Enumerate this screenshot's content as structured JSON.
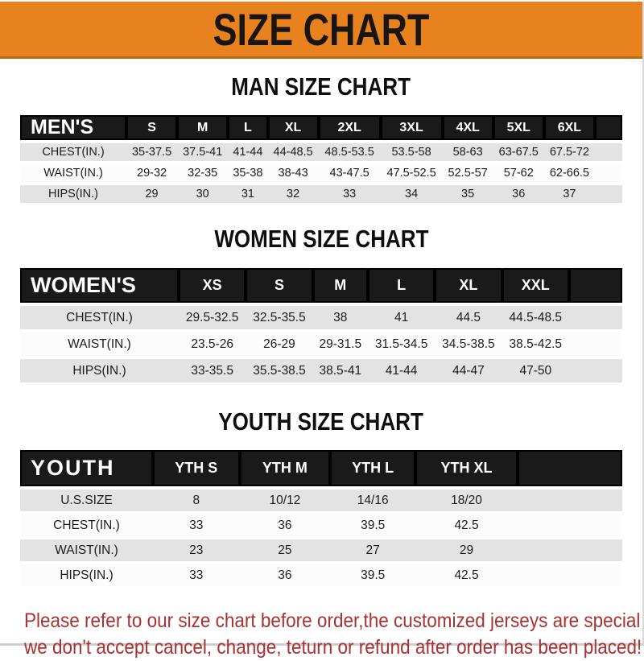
{
  "banner": {
    "title": "SIZE CHART",
    "bg_color": "#e8821e",
    "text_color": "#181512"
  },
  "sections": [
    {
      "id": "men",
      "title": "MAN SIZE CHART",
      "header_label": "MEN'S",
      "columns": [
        "S",
        "M",
        "L",
        "XL",
        "2XL",
        "3XL",
        "4XL",
        "5XL",
        "6XL"
      ],
      "rows": [
        {
          "label": "CHEST(IN.)",
          "values": [
            "35-37.5",
            "37.5-41",
            "41-44",
            "44-48.5",
            "48.5-53.5",
            "53.5-58",
            "58-63",
            "63-67.5",
            "67.5-72"
          ]
        },
        {
          "label": "WAIST(IN.)",
          "values": [
            "29-32",
            "32-35",
            "35-38",
            "38-43",
            "43-47.5",
            "47.5-52.5",
            "52.5-57",
            "57-62",
            "62-66.5"
          ]
        },
        {
          "label": "HIPS(IN.)",
          "values": [
            "29",
            "30",
            "31",
            "32",
            "33",
            "34",
            "35",
            "36",
            "37"
          ]
        }
      ]
    },
    {
      "id": "women",
      "title": "WOMEN SIZE CHART",
      "header_label": "WOMEN'S",
      "columns": [
        "XS",
        "S",
        "M",
        "L",
        "XL",
        "XXL"
      ],
      "rows": [
        {
          "label": "CHEST(IN.)",
          "values": [
            "29.5-32.5",
            "32.5-35.5",
            "38",
            "41",
            "44.5",
            "44.5-48.5"
          ]
        },
        {
          "label": "WAIST(IN.)",
          "values": [
            "23.5-26",
            "26-29",
            "29-31.5",
            "31.5-34.5",
            "34.5-38.5",
            "38.5-42.5"
          ]
        },
        {
          "label": "HIPS(IN.)",
          "values": [
            "33-35.5",
            "35.5-38.5",
            "38.5-41",
            "41-44",
            "44-47",
            "47-50"
          ]
        }
      ]
    },
    {
      "id": "youth",
      "title": "YOUTH SIZE CHART",
      "header_label": "YOUTH",
      "columns": [
        "YTH S",
        "YTH M",
        "YTH L",
        "YTH XL"
      ],
      "rows": [
        {
          "label": "U.S.SIZE",
          "values": [
            "8",
            "10/12",
            "14/16",
            "18/20"
          ]
        },
        {
          "label": "CHEST(IN.)",
          "values": [
            "33",
            "36",
            "39.5",
            "42.5"
          ]
        },
        {
          "label": "WAIST(IN.)",
          "values": [
            "23",
            "25",
            "27",
            "29"
          ]
        },
        {
          "label": "HIPS(IN.)",
          "values": [
            "33",
            "36",
            "39.5",
            "42.5"
          ]
        }
      ]
    }
  ],
  "footer": {
    "line1": "Please refer to our size chart before order,the customized jerseys are special products,",
    "line2": "we don't accept cancel, change, teturn or refund after order has been placed!",
    "text_color": "#a93231"
  }
}
